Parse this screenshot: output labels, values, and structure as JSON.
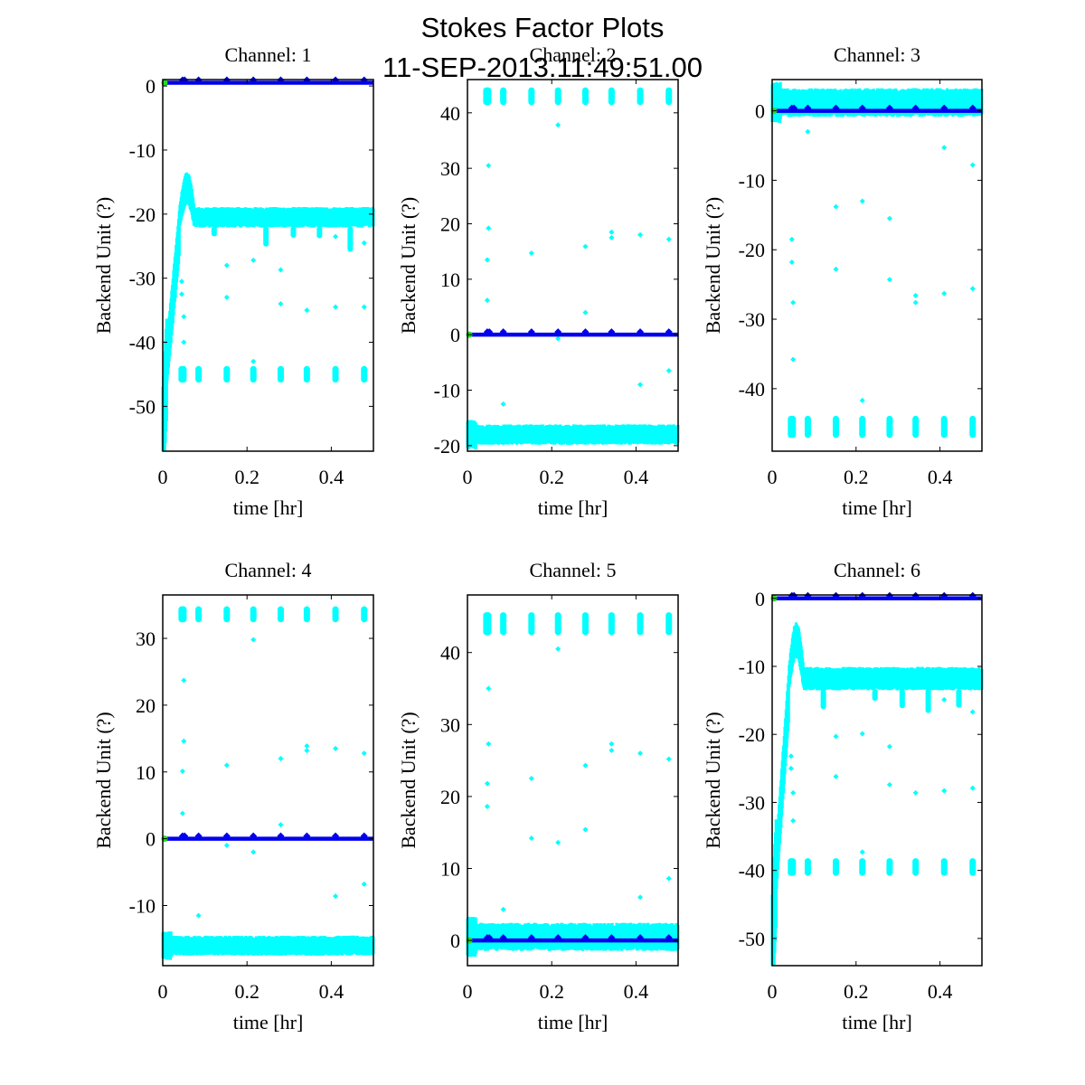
{
  "figure": {
    "title_line1": "Stokes Factor Plots",
    "title_line2": "11-SEP-2013.11:49:51.00"
  },
  "colors": {
    "scatter": "#00ffff",
    "line": "#0000ee",
    "start_marker": "#22dd22",
    "axes": "#000000"
  },
  "chart_data": [
    {
      "type": "scatter",
      "title": "Channel: 1",
      "xlabel": "time [hr]",
      "ylabel": "Backend Unit (?)",
      "xlim": [
        0,
        0.5
      ],
      "ylim": [
        -57,
        1
      ],
      "xticks": [
        0,
        0.2,
        0.4
      ],
      "xtick_labels": [
        "0",
        "0.2",
        "0.4"
      ],
      "yticks": [
        0,
        -10,
        -20,
        -30,
        -40,
        -50
      ],
      "ytick_labels": [
        "0",
        "-10",
        "-20",
        "-30",
        "-40",
        "-50"
      ],
      "blue_line_level": 0.5,
      "band": {
        "center": -20.5,
        "halfwidth": 1.4,
        "startup_min": -55,
        "overshoot_peak": -15.5
      },
      "clusters": {
        "center": -45,
        "halfheight": 1.3,
        "times": [
          0.047,
          0.085,
          0.152,
          0.215,
          0.28,
          0.342,
          0.41,
          0.478
        ]
      },
      "outliers": [
        [
          0.045,
          -30.5
        ],
        [
          0.045,
          -32.5
        ],
        [
          0.05,
          -36
        ],
        [
          0.05,
          -40
        ],
        [
          0.152,
          -28
        ],
        [
          0.152,
          -33
        ],
        [
          0.215,
          -27.2
        ],
        [
          0.215,
          -43
        ],
        [
          0.28,
          -28.7
        ],
        [
          0.28,
          -34
        ],
        [
          0.342,
          -35
        ],
        [
          0.41,
          -34.5
        ],
        [
          0.41,
          -23.5
        ],
        [
          0.478,
          -34.5
        ],
        [
          0.478,
          -24.5
        ]
      ]
    },
    {
      "type": "scatter",
      "title": "Channel: 2",
      "xlabel": "time [hr]",
      "ylabel": "Backend Unit (?)",
      "xlim": [
        0,
        0.5
      ],
      "ylim": [
        -21,
        46
      ],
      "xticks": [
        0,
        0.2,
        0.4
      ],
      "xtick_labels": [
        "0",
        "0.2",
        "0.4"
      ],
      "yticks": [
        40,
        30,
        20,
        10,
        0,
        -10,
        -20
      ],
      "ytick_labels": [
        "40",
        "30",
        "20",
        "10",
        "0",
        "-10",
        "-20"
      ],
      "blue_line_level": 0,
      "band": {
        "center": -18,
        "halfwidth": 1.6
      },
      "clusters": {
        "center": 43,
        "halfheight": 1.6,
        "times": [
          0.047,
          0.085,
          0.152,
          0.215,
          0.28,
          0.342,
          0.41,
          0.478
        ]
      },
      "outliers": [
        [
          0.05,
          30.5
        ],
        [
          0.05,
          19.2
        ],
        [
          0.047,
          13.5
        ],
        [
          0.047,
          6.2
        ],
        [
          0.152,
          14.7
        ],
        [
          0.215,
          37.8
        ],
        [
          0.215,
          -0.7
        ],
        [
          0.152,
          0.5
        ],
        [
          0.28,
          15.9
        ],
        [
          0.28,
          4
        ],
        [
          0.342,
          18.5
        ],
        [
          0.342,
          17.5
        ],
        [
          0.41,
          18
        ],
        [
          0.478,
          17.2
        ],
        [
          0.41,
          -9
        ],
        [
          0.478,
          -6.5
        ],
        [
          0.085,
          -12.5
        ]
      ]
    },
    {
      "type": "scatter",
      "title": "Channel: 3",
      "xlabel": "time [hr]",
      "ylabel": "Backend Unit (?)",
      "xlim": [
        0,
        0.5
      ],
      "ylim": [
        -49,
        4.5
      ],
      "xticks": [
        0,
        0.2,
        0.4
      ],
      "xtick_labels": [
        "0",
        "0.2",
        "0.4"
      ],
      "yticks": [
        0,
        -10,
        -20,
        -30,
        -40
      ],
      "ytick_labels": [
        "0",
        "-10",
        "-20",
        "-30",
        "-40"
      ],
      "blue_line_level": 0,
      "band": {
        "center": 1.2,
        "halfwidth": 1.8
      },
      "clusters": {
        "center": -45.5,
        "halfheight": 1.6,
        "times": [
          0.047,
          0.085,
          0.152,
          0.215,
          0.28,
          0.342,
          0.41,
          0.478
        ]
      },
      "outliers": [
        [
          0.085,
          -3
        ],
        [
          0.41,
          -5.3
        ],
        [
          0.478,
          -7.8
        ],
        [
          0.152,
          -13.8
        ],
        [
          0.215,
          -13
        ],
        [
          0.28,
          -15.5
        ],
        [
          0.047,
          -18.5
        ],
        [
          0.047,
          -21.8
        ],
        [
          0.05,
          -27.6
        ],
        [
          0.05,
          -35.8
        ],
        [
          0.152,
          -22.8
        ],
        [
          0.28,
          -24.3
        ],
        [
          0.342,
          -26.6
        ],
        [
          0.342,
          -27.6
        ],
        [
          0.41,
          -26.3
        ],
        [
          0.478,
          -25.6
        ],
        [
          0.215,
          -41.7
        ]
      ]
    },
    {
      "type": "scatter",
      "title": "Channel: 4",
      "xlabel": "time [hr]",
      "ylabel": "Backend Unit (?)",
      "xlim": [
        0,
        0.5
      ],
      "ylim": [
        -19,
        36.5
      ],
      "xticks": [
        0,
        0.2,
        0.4
      ],
      "xtick_labels": [
        "0",
        "0.2",
        "0.4"
      ],
      "yticks": [
        30,
        20,
        10,
        0,
        -10
      ],
      "ytick_labels": [
        "30",
        "20",
        "10",
        "0",
        "-10"
      ],
      "blue_line_level": 0,
      "band": {
        "center": -16,
        "halfwidth": 1.3
      },
      "clusters": {
        "center": 33.6,
        "halfheight": 1.2,
        "times": [
          0.047,
          0.085,
          0.152,
          0.215,
          0.28,
          0.342,
          0.41,
          0.478
        ]
      },
      "outliers": [
        [
          0.05,
          23.7
        ],
        [
          0.05,
          14.6
        ],
        [
          0.047,
          10.1
        ],
        [
          0.047,
          3.8
        ],
        [
          0.152,
          11
        ],
        [
          0.215,
          29.8
        ],
        [
          0.215,
          -2
        ],
        [
          0.152,
          -1
        ],
        [
          0.28,
          12
        ],
        [
          0.28,
          2.1
        ],
        [
          0.342,
          13.9
        ],
        [
          0.342,
          13.2
        ],
        [
          0.41,
          13.5
        ],
        [
          0.478,
          12.8
        ],
        [
          0.41,
          -8.6
        ],
        [
          0.478,
          -6.8
        ],
        [
          0.085,
          -11.5
        ]
      ]
    },
    {
      "type": "scatter",
      "title": "Channel: 5",
      "xlabel": "time [hr]",
      "ylabel": "Backend Unit (?)",
      "xlim": [
        0,
        0.5
      ],
      "ylim": [
        -3.5,
        48
      ],
      "xticks": [
        0,
        0.2,
        0.4
      ],
      "xtick_labels": [
        "0",
        "0.2",
        "0.4"
      ],
      "yticks": [
        40,
        30,
        20,
        10,
        0
      ],
      "ytick_labels": [
        "40",
        "30",
        "20",
        "10",
        "0"
      ],
      "blue_line_level": 0,
      "band": {
        "center": 0.5,
        "halfwidth": 1.7
      },
      "clusters": {
        "center": 44,
        "halfheight": 1.6,
        "times": [
          0.047,
          0.085,
          0.152,
          0.215,
          0.28,
          0.342,
          0.41,
          0.478
        ]
      },
      "outliers": [
        [
          0.05,
          35
        ],
        [
          0.05,
          27.3
        ],
        [
          0.047,
          21.8
        ],
        [
          0.047,
          18.6
        ],
        [
          0.152,
          22.5
        ],
        [
          0.152,
          14.2
        ],
        [
          0.215,
          40.5
        ],
        [
          0.215,
          13.6
        ],
        [
          0.28,
          24.3
        ],
        [
          0.28,
          15.4
        ],
        [
          0.342,
          27.3
        ],
        [
          0.342,
          26.4
        ],
        [
          0.41,
          26
        ],
        [
          0.478,
          25.2
        ],
        [
          0.41,
          6
        ],
        [
          0.478,
          8.6
        ],
        [
          0.085,
          4.3
        ]
      ]
    },
    {
      "type": "scatter",
      "title": "Channel: 6",
      "xlabel": "time [hr]",
      "ylabel": "Backend Unit (?)",
      "xlim": [
        0,
        0.5
      ],
      "ylim": [
        -54,
        0.5
      ],
      "xticks": [
        0,
        0.2,
        0.4
      ],
      "xtick_labels": [
        "0",
        "0.2",
        "0.4"
      ],
      "yticks": [
        0,
        -10,
        -20,
        -30,
        -40,
        -50
      ],
      "ytick_labels": [
        "0",
        "-10",
        "-20",
        "-30",
        "-40",
        "-50"
      ],
      "blue_line_level": 0,
      "band": {
        "center": -11.8,
        "halfwidth": 1.5,
        "startup_min": -51.5,
        "overshoot_peak": -5.5
      },
      "clusters": {
        "center": -39.5,
        "halfheight": 1.3,
        "times": [
          0.047,
          0.085,
          0.152,
          0.215,
          0.28,
          0.342,
          0.41,
          0.478
        ]
      },
      "outliers": [
        [
          0.045,
          -23.2
        ],
        [
          0.045,
          -25
        ],
        [
          0.05,
          -28.6
        ],
        [
          0.05,
          -32.7
        ],
        [
          0.152,
          -20.3
        ],
        [
          0.152,
          -26.2
        ],
        [
          0.215,
          -19.9
        ],
        [
          0.215,
          -37.3
        ],
        [
          0.28,
          -21.8
        ],
        [
          0.28,
          -27.4
        ],
        [
          0.342,
          -28.6
        ],
        [
          0.41,
          -28.3
        ],
        [
          0.41,
          -14.9
        ],
        [
          0.478,
          -27.9
        ],
        [
          0.478,
          -16.7
        ]
      ]
    }
  ]
}
